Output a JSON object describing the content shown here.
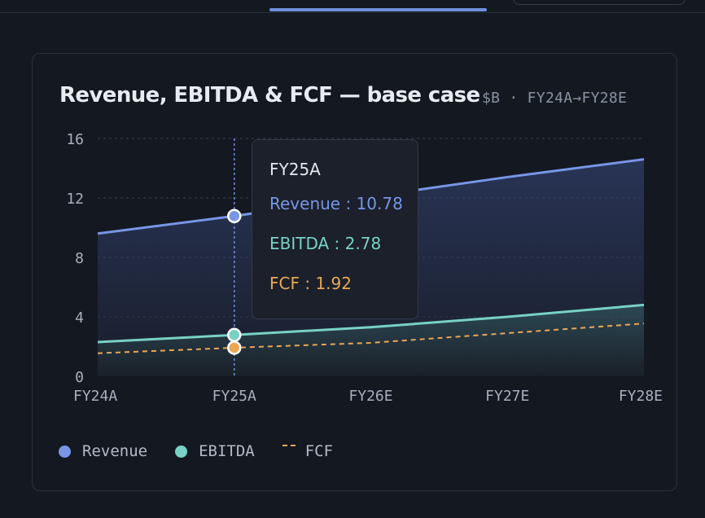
{
  "card": {
    "title": "Revenue, EBITDA & FCF — base case",
    "subtitle": "$B · FY24A→FY28E"
  },
  "tooltip": {
    "category": "FY25A",
    "rows": [
      {
        "label": "Revenue",
        "value": "10.78",
        "color": "#7896e6"
      },
      {
        "label": "EBITDA",
        "value": "2.78",
        "color": "#79d1c5"
      },
      {
        "label": "FCF",
        "value": "1.92",
        "color": "#eaa756"
      }
    ]
  },
  "legend": [
    {
      "label": "Revenue",
      "color": "#7896e6",
      "marker": "dot"
    },
    {
      "label": "EBITDA",
      "color": "#79d1c5",
      "marker": "dot"
    },
    {
      "label": "FCF",
      "color": "#eaa756",
      "marker": "dash"
    }
  ],
  "chart_data": {
    "type": "area",
    "categories": [
      "FY24A",
      "FY25A",
      "FY26E",
      "FY27E",
      "FY28E"
    ],
    "series": [
      {
        "name": "Revenue",
        "values": [
          9.6,
          10.78,
          12.1,
          13.4,
          14.6
        ],
        "color": "#7896e6",
        "style": "solid",
        "fill": true
      },
      {
        "name": "EBITDA",
        "values": [
          2.3,
          2.78,
          3.3,
          4.0,
          4.8
        ],
        "color": "#79d1c5",
        "style": "solid",
        "fill": true
      },
      {
        "name": "FCF",
        "values": [
          1.55,
          1.92,
          2.25,
          2.9,
          3.55
        ],
        "color": "#eaa756",
        "style": "dashed",
        "fill": false
      }
    ],
    "yticks": [
      0,
      4,
      8,
      12,
      16
    ],
    "ylim": [
      0,
      16
    ],
    "grid": true,
    "highlight_category": "FY25A",
    "legend_position": "bottom-left"
  }
}
